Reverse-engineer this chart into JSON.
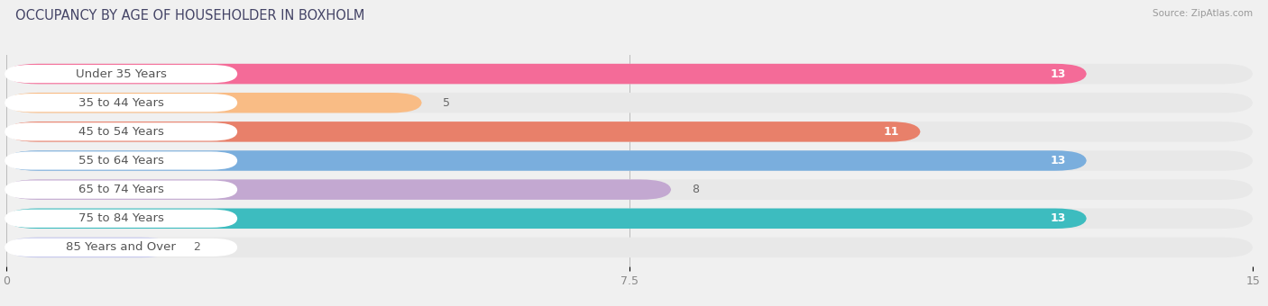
{
  "title": "OCCUPANCY BY AGE OF HOUSEHOLDER IN BOXHOLM",
  "source": "Source: ZipAtlas.com",
  "categories": [
    "Under 35 Years",
    "35 to 44 Years",
    "45 to 54 Years",
    "55 to 64 Years",
    "65 to 74 Years",
    "75 to 84 Years",
    "85 Years and Over"
  ],
  "values": [
    13,
    5,
    11,
    13,
    8,
    13,
    2
  ],
  "bar_colors": [
    "#F46B98",
    "#F9BC85",
    "#E8806A",
    "#7AAEDD",
    "#C3A8D1",
    "#3DBCBF",
    "#C5C8ED"
  ],
  "bar_bg_colors": [
    "#EDEDED",
    "#EDEDED",
    "#EDEDED",
    "#EDEDED",
    "#EDEDED",
    "#EDEDED",
    "#EDEDED"
  ],
  "value_inside": [
    true,
    false,
    true,
    true,
    false,
    true,
    false
  ],
  "xlim": [
    0,
    15
  ],
  "xticks": [
    0,
    7.5,
    15
  ],
  "title_fontsize": 10.5,
  "label_fontsize": 9.5,
  "value_fontsize": 9,
  "bg_color": "#f0f0f0"
}
